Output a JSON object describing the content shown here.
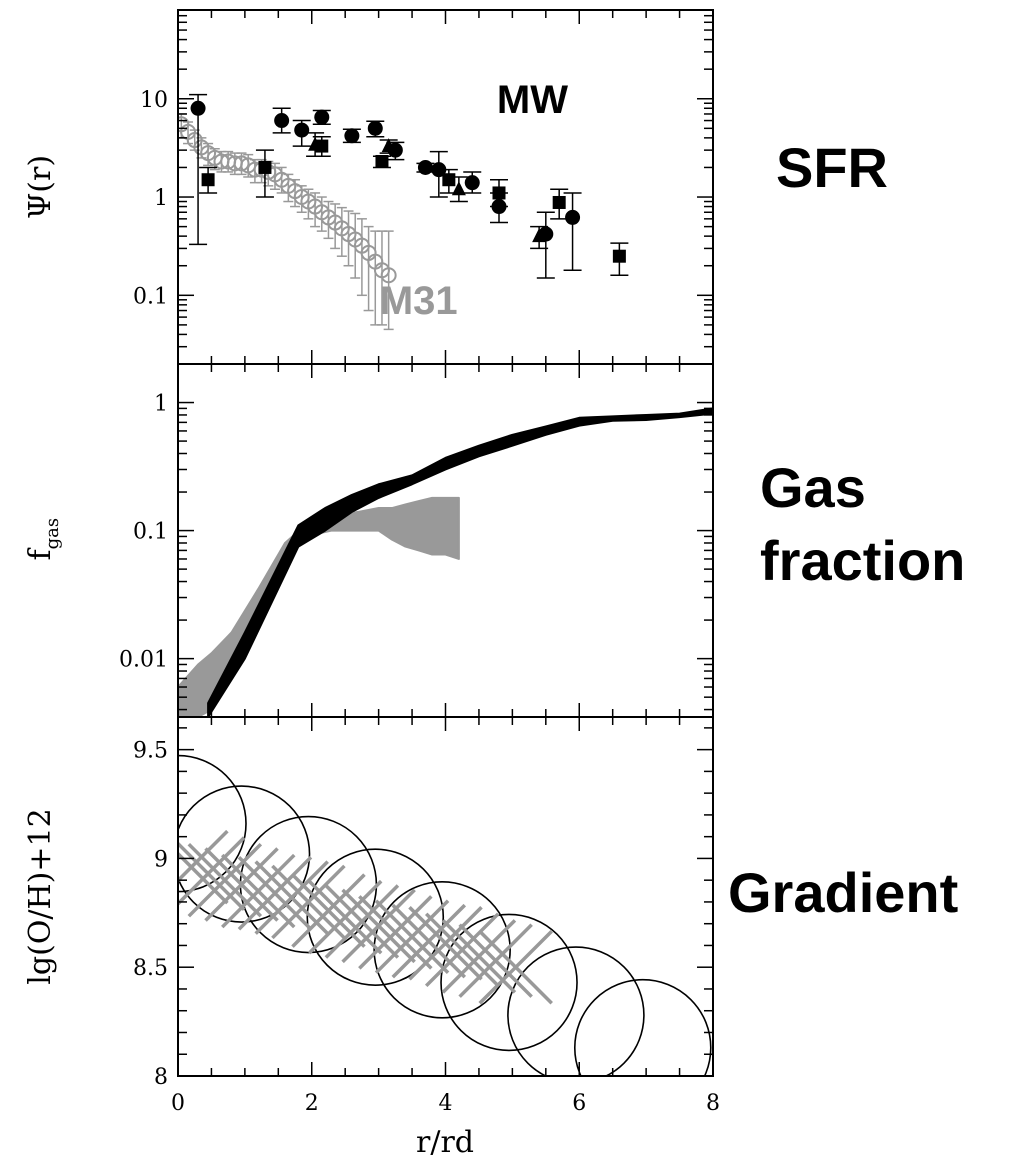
{
  "side_labels": {
    "sfr": "SFR",
    "gas_line1": "Gas",
    "gas_line2": "fraction",
    "gradient": "Gradient"
  },
  "colors": {
    "black": "#000000",
    "gray": "#999999"
  },
  "chart_data": [
    {
      "type": "scatter",
      "panel": "top",
      "ylabel": "Ψ(r)",
      "yscale": "log",
      "xlim": [
        0,
        8
      ],
      "ylim": [
        0.02,
        80
      ],
      "yticks": [
        {
          "v": 0.1,
          "label": "0.1"
        },
        {
          "v": 1,
          "label": "1"
        },
        {
          "v": 10,
          "label": "10"
        }
      ],
      "annotations": [
        {
          "text": "MW",
          "x": 5.3,
          "y": 10,
          "color": "#000000"
        },
        {
          "text": "M31",
          "x": 3.6,
          "y": 0.09,
          "color": "#999999"
        }
      ],
      "series": [
        {
          "name": "MW",
          "color": "#000000",
          "points": [
            {
              "x": 0.3,
              "y": 8.0,
              "lo": 0.33,
              "hi": 11.0,
              "m": "circle"
            },
            {
              "x": 0.45,
              "y": 1.5,
              "lo": 1.1,
              "hi": 2.0,
              "m": "square"
            },
            {
              "x": 1.3,
              "y": 2.0,
              "lo": 1.0,
              "hi": 3.0,
              "m": "square"
            },
            {
              "x": 1.55,
              "y": 6.0,
              "lo": 4.5,
              "hi": 8.0,
              "m": "circle"
            },
            {
              "x": 1.85,
              "y": 4.8,
              "lo": 3.3,
              "hi": 6.0,
              "m": "circle"
            },
            {
              "x": 2.05,
              "y": 3.4,
              "lo": 2.6,
              "hi": 4.5,
              "m": "tri"
            },
            {
              "x": 2.15,
              "y": 3.3,
              "lo": 2.6,
              "hi": 4.1,
              "m": "square"
            },
            {
              "x": 2.15,
              "y": 6.5,
              "lo": 5.5,
              "hi": 7.6,
              "m": "circle"
            },
            {
              "x": 2.6,
              "y": 4.2,
              "lo": 3.6,
              "hi": 4.9,
              "m": "circle"
            },
            {
              "x": 2.95,
              "y": 5.0,
              "lo": 4.1,
              "hi": 5.9,
              "m": "circle"
            },
            {
              "x": 3.05,
              "y": 2.3,
              "lo": 2.0,
              "hi": 2.6,
              "m": "square"
            },
            {
              "x": 3.25,
              "y": 3.0,
              "lo": 2.4,
              "hi": 3.6,
              "m": "circle"
            },
            {
              "x": 3.15,
              "y": 3.3,
              "lo": 2.8,
              "hi": 3.8,
              "m": "tri"
            },
            {
              "x": 3.7,
              "y": 2.0,
              "lo": 1.8,
              "hi": 2.2,
              "m": "circle"
            },
            {
              "x": 3.9,
              "y": 1.9,
              "lo": 1.0,
              "hi": 2.9,
              "m": "circle"
            },
            {
              "x": 4.05,
              "y": 1.5,
              "lo": 1.1,
              "hi": 1.9,
              "m": "square"
            },
            {
              "x": 4.2,
              "y": 1.2,
              "lo": 0.9,
              "hi": 1.6,
              "m": "tri"
            },
            {
              "x": 4.4,
              "y": 1.4,
              "lo": 1.1,
              "hi": 1.8,
              "m": "circle"
            },
            {
              "x": 4.8,
              "y": 1.1,
              "lo": 0.8,
              "hi": 1.5,
              "m": "square"
            },
            {
              "x": 4.8,
              "y": 0.8,
              "lo": 0.55,
              "hi": 1.1,
              "m": "circle"
            },
            {
              "x": 5.4,
              "y": 0.4,
              "lo": 0.3,
              "hi": 0.5,
              "m": "tri"
            },
            {
              "x": 5.5,
              "y": 0.42,
              "lo": 0.15,
              "hi": 0.7,
              "m": "circle"
            },
            {
              "x": 5.7,
              "y": 0.88,
              "lo": 0.6,
              "hi": 1.2,
              "m": "square"
            },
            {
              "x": 5.9,
              "y": 0.62,
              "lo": 0.18,
              "hi": 1.1,
              "m": "circle"
            },
            {
              "x": 6.6,
              "y": 0.25,
              "lo": 0.16,
              "hi": 0.34,
              "m": "square"
            }
          ]
        },
        {
          "name": "M31",
          "color": "#999999",
          "points": [
            {
              "x": 0.05,
              "y": 5.5,
              "lo": 4.0,
              "hi": 7.0
            },
            {
              "x": 0.15,
              "y": 4.6,
              "lo": 3.5,
              "hi": 5.8
            },
            {
              "x": 0.25,
              "y": 3.8,
              "lo": 3.0,
              "hi": 4.8
            },
            {
              "x": 0.35,
              "y": 3.2,
              "lo": 2.5,
              "hi": 4.0
            },
            {
              "x": 0.45,
              "y": 2.8,
              "lo": 2.1,
              "hi": 3.5
            },
            {
              "x": 0.55,
              "y": 2.5,
              "lo": 1.9,
              "hi": 3.1
            },
            {
              "x": 0.65,
              "y": 2.3,
              "lo": 1.8,
              "hi": 2.9
            },
            {
              "x": 0.75,
              "y": 2.3,
              "lo": 1.8,
              "hi": 2.9
            },
            {
              "x": 0.85,
              "y": 2.2,
              "lo": 1.7,
              "hi": 2.8
            },
            {
              "x": 0.95,
              "y": 2.2,
              "lo": 1.7,
              "hi": 2.8
            },
            {
              "x": 1.05,
              "y": 2.1,
              "lo": 1.6,
              "hi": 2.7
            },
            {
              "x": 1.15,
              "y": 1.9,
              "lo": 1.4,
              "hi": 2.4
            },
            {
              "x": 1.25,
              "y": 1.9,
              "lo": 1.4,
              "hi": 2.4
            },
            {
              "x": 1.35,
              "y": 1.8,
              "lo": 1.3,
              "hi": 2.3
            },
            {
              "x": 1.45,
              "y": 1.7,
              "lo": 1.2,
              "hi": 2.2
            },
            {
              "x": 1.55,
              "y": 1.5,
              "lo": 1.1,
              "hi": 2.0
            },
            {
              "x": 1.65,
              "y": 1.3,
              "lo": 0.9,
              "hi": 1.7
            },
            {
              "x": 1.75,
              "y": 1.15,
              "lo": 0.8,
              "hi": 1.5
            },
            {
              "x": 1.85,
              "y": 1.0,
              "lo": 0.7,
              "hi": 1.3
            },
            {
              "x": 1.95,
              "y": 0.9,
              "lo": 0.6,
              "hi": 1.2
            },
            {
              "x": 2.05,
              "y": 0.8,
              "lo": 0.5,
              "hi": 1.1
            },
            {
              "x": 2.15,
              "y": 0.7,
              "lo": 0.45,
              "hi": 1.0
            },
            {
              "x": 2.25,
              "y": 0.62,
              "lo": 0.38,
              "hi": 0.9
            },
            {
              "x": 2.35,
              "y": 0.55,
              "lo": 0.3,
              "hi": 0.85
            },
            {
              "x": 2.45,
              "y": 0.48,
              "lo": 0.25,
              "hi": 0.78
            },
            {
              "x": 2.55,
              "y": 0.42,
              "lo": 0.2,
              "hi": 0.72
            },
            {
              "x": 2.65,
              "y": 0.37,
              "lo": 0.15,
              "hi": 0.68
            },
            {
              "x": 2.75,
              "y": 0.32,
              "lo": 0.1,
              "hi": 0.6
            },
            {
              "x": 2.85,
              "y": 0.27,
              "lo": 0.07,
              "hi": 0.5
            },
            {
              "x": 2.95,
              "y": 0.22,
              "lo": 0.05,
              "hi": 0.45
            },
            {
              "x": 3.05,
              "y": 0.18,
              "lo": 0.05,
              "hi": 0.45
            },
            {
              "x": 3.15,
              "y": 0.16,
              "lo": 0.045,
              "hi": 0.45
            }
          ]
        }
      ]
    },
    {
      "type": "area",
      "panel": "middle",
      "ylabel": "f",
      "ylabel_sub": "gas",
      "yscale": "log",
      "xlim": [
        0,
        8
      ],
      "ylim": [
        0.0035,
        2.0
      ],
      "yticks": [
        {
          "v": 0.01,
          "label": "0.01"
        },
        {
          "v": 0.1,
          "label": "0.1"
        },
        {
          "v": 1,
          "label": "1"
        }
      ],
      "series": [
        {
          "name": "MW",
          "color": "#000000",
          "x": [
            0.45,
            1.0,
            1.8,
            2.2,
            2.6,
            3.0,
            3.5,
            4.0,
            4.5,
            5.0,
            5.5,
            6.0,
            6.5,
            7.0,
            7.5,
            8.0
          ],
          "lower": [
            0.0035,
            0.01,
            0.075,
            0.1,
            0.14,
            0.18,
            0.23,
            0.3,
            0.38,
            0.46,
            0.56,
            0.66,
            0.72,
            0.73,
            0.77,
            0.82
          ],
          "upper": [
            0.0045,
            0.016,
            0.11,
            0.15,
            0.19,
            0.23,
            0.27,
            0.37,
            0.46,
            0.56,
            0.65,
            0.76,
            0.78,
            0.8,
            0.82,
            0.9
          ]
        },
        {
          "name": "M31",
          "color": "#999999",
          "x": [
            0.0,
            0.3,
            0.5,
            0.8,
            1.2,
            1.6,
            1.9,
            2.3,
            2.7,
            3.0,
            3.2,
            3.4,
            3.6,
            3.8,
            4.0,
            4.2
          ],
          "lower": [
            0.0035,
            0.0035,
            0.004,
            0.009,
            0.022,
            0.06,
            0.09,
            0.1,
            0.1,
            0.1,
            0.085,
            0.075,
            0.07,
            0.065,
            0.065,
            0.06
          ],
          "upper": [
            0.006,
            0.009,
            0.011,
            0.016,
            0.035,
            0.08,
            0.11,
            0.13,
            0.14,
            0.15,
            0.15,
            0.16,
            0.17,
            0.18,
            0.18,
            0.18
          ]
        }
      ]
    },
    {
      "type": "scatter",
      "panel": "bottom",
      "ylabel": "lg(O/H)+12",
      "xlim": [
        0,
        8
      ],
      "ylim": [
        8.0,
        9.65
      ],
      "yticks": [
        {
          "v": 8,
          "label": "8"
        },
        {
          "v": 8.5,
          "label": "8.5"
        },
        {
          "v": 9,
          "label": "9"
        },
        {
          "v": 9.5,
          "label": "9.5"
        }
      ],
      "xticks": [
        {
          "v": 0,
          "label": "0"
        },
        {
          "v": 2,
          "label": "2"
        },
        {
          "v": 4,
          "label": "4"
        },
        {
          "v": 6,
          "label": "6"
        },
        {
          "v": 8,
          "label": "8"
        }
      ],
      "xlabel": "r/rd",
      "series": [
        {
          "name": "model",
          "marker": "open-circle",
          "color": "#000000",
          "points": [
            [
              0.0,
              9.16
            ],
            [
              0.95,
              9.02
            ],
            [
              1.95,
              8.88
            ],
            [
              2.95,
              8.73
            ],
            [
              3.95,
              8.58
            ],
            [
              4.95,
              8.43
            ],
            [
              5.95,
              8.28
            ],
            [
              6.95,
              8.13
            ]
          ]
        },
        {
          "name": "obs",
          "marker": "cross",
          "color": "#999999",
          "points": [
            [
              0.2,
              8.96
            ],
            [
              0.45,
              8.93
            ],
            [
              0.7,
              8.9
            ],
            [
              0.95,
              8.88
            ],
            [
              1.2,
              8.85
            ],
            [
              1.45,
              8.84
            ],
            [
              1.7,
              8.82
            ],
            [
              1.95,
              8.8
            ],
            [
              2.25,
              8.76
            ],
            [
              2.5,
              8.73
            ],
            [
              2.75,
              8.71
            ],
            [
              3.0,
              8.69
            ],
            [
              3.25,
              8.66
            ],
            [
              3.5,
              8.64
            ],
            [
              3.75,
              8.62
            ],
            [
              4.0,
              8.61
            ],
            [
              4.25,
              8.58
            ],
            [
              4.5,
              8.55
            ],
            [
              4.75,
              8.53
            ],
            [
              5.05,
              8.5
            ]
          ]
        }
      ]
    }
  ]
}
